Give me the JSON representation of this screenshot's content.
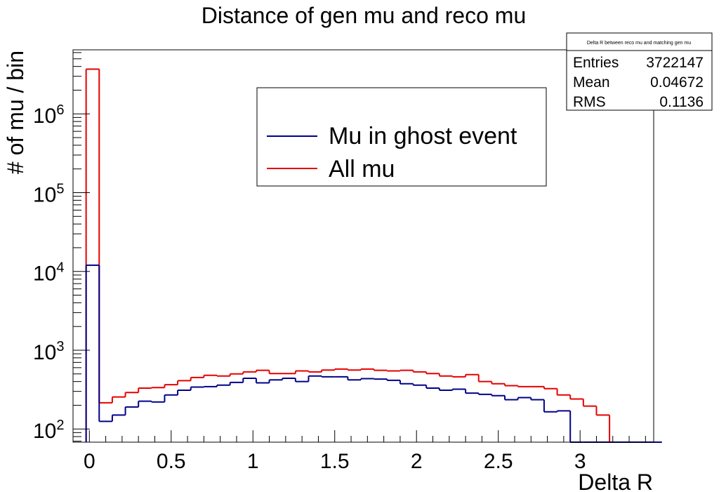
{
  "chart_data": {
    "type": "histogram",
    "title": "Distance of gen mu and reco mu",
    "xlabel": "Delta R",
    "ylabel": "# of mu / bin",
    "xlim": [
      -0.1,
      3.45
    ],
    "ylim": [
      68,
      6500000
    ],
    "yscale": "log",
    "grid": false,
    "legend_placement": "top-center",
    "x_ticks": [
      {
        "v": 0,
        "label": "0"
      },
      {
        "v": 0.5,
        "label": "0.5"
      },
      {
        "v": 1,
        "label": "1"
      },
      {
        "v": 1.5,
        "label": "1.5"
      },
      {
        "v": 2,
        "label": "2"
      },
      {
        "v": 2.5,
        "label": "2.5"
      },
      {
        "v": 3,
        "label": "3"
      }
    ],
    "y_ticks": [
      {
        "exp": 2,
        "base": "10",
        "sup": "2"
      },
      {
        "exp": 3,
        "base": "10",
        "sup": "3"
      },
      {
        "exp": 4,
        "base": "10",
        "sup": "4"
      },
      {
        "exp": 5,
        "base": "10",
        "sup": "5"
      },
      {
        "exp": 6,
        "base": "10",
        "sup": "6"
      }
    ],
    "bins": {
      "start": -0.02,
      "width": 0.08,
      "count": 44
    },
    "series": [
      {
        "name": "All mu",
        "color": "#e60000",
        "values": [
          3700000,
          215,
          255,
          290,
          330,
          335,
          365,
          410,
          450,
          480,
          470,
          500,
          530,
          555,
          505,
          505,
          545,
          530,
          560,
          575,
          560,
          575,
          555,
          545,
          555,
          530,
          505,
          470,
          460,
          490,
          400,
          375,
          355,
          345,
          345,
          325,
          270,
          240,
          195,
          150,
          68,
          68,
          68,
          68
        ]
      },
      {
        "name": "Mu in ghost event",
        "color": "#00008b",
        "values": [
          12000,
          125,
          150,
          190,
          225,
          220,
          270,
          310,
          340,
          345,
          360,
          390,
          440,
          385,
          420,
          440,
          400,
          470,
          460,
          460,
          420,
          435,
          430,
          415,
          375,
          360,
          330,
          310,
          320,
          285,
          275,
          265,
          235,
          250,
          235,
          165,
          170,
          68,
          68,
          68,
          68,
          68,
          68,
          68
        ]
      }
    ],
    "legend": [
      {
        "label": "Mu in ghost event",
        "color": "#00008b"
      },
      {
        "label": "All mu",
        "color": "#e60000"
      }
    ],
    "stats_box": {
      "title": "Delta R between reco mu and matching gen mu",
      "rows": [
        {
          "label": "Entries",
          "value": "3722147"
        },
        {
          "label": "Mean",
          "value": "0.04672"
        },
        {
          "label": "RMS",
          "value": "0.1136"
        }
      ]
    }
  }
}
